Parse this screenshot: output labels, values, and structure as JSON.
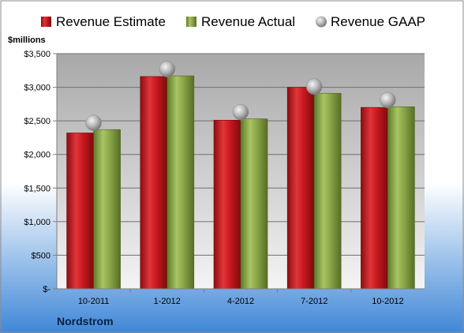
{
  "chart_data": {
    "type": "bar",
    "title": "",
    "ylabel": "$millions",
    "xlabel": "",
    "company": "Nordstrom",
    "categories": [
      "10-2011",
      "1-2012",
      "4-2012",
      "7-2012",
      "10-2012"
    ],
    "series": [
      {
        "name": "Revenue Estimate",
        "values": [
          2320,
          3160,
          2510,
          3000,
          2700
        ]
      },
      {
        "name": "Revenue Actual",
        "values": [
          2370,
          3170,
          2530,
          2910,
          2710
        ]
      },
      {
        "name": "Revenue GAAP",
        "values": [
          2470,
          3270,
          2630,
          3010,
          2810
        ],
        "marker": "circle"
      }
    ],
    "ylim": [
      0,
      3500
    ],
    "yticks": [
      0,
      500,
      1000,
      1500,
      2000,
      2500,
      3000,
      3500
    ],
    "ytick_labels": [
      "$-",
      "$500",
      "$1,000",
      "$1,500",
      "$2,000",
      "$2,500",
      "$3,000",
      "$3,500"
    ],
    "grid": true,
    "legend": "top",
    "colors": {
      "estimate": "#c0161c",
      "actual": "#8aa648",
      "gaap": "#a9a9a9",
      "bg_top": "#ffffff",
      "bg_bottom": "#3f87d7",
      "plot_top": "#a9a9a9",
      "plot_bottom": "#f2f2f2"
    }
  }
}
